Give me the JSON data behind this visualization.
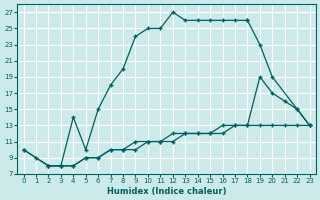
{
  "xlabel": "Humidex (Indice chaleur)",
  "bg_color": "#cdeaea",
  "grid_color": "#ffffff",
  "line_color": "#005f5f",
  "xlim": [
    -0.5,
    23.5
  ],
  "ylim": [
    7,
    28
  ],
  "xticks": [
    0,
    1,
    2,
    3,
    4,
    5,
    6,
    7,
    8,
    9,
    10,
    11,
    12,
    13,
    14,
    15,
    16,
    17,
    18,
    19,
    20,
    21,
    22,
    23
  ],
  "yticks": [
    7,
    9,
    11,
    13,
    15,
    17,
    19,
    21,
    23,
    25,
    27
  ],
  "line_top_x": [
    0,
    1,
    2,
    3,
    4,
    5,
    6,
    7,
    8,
    9,
    10,
    11,
    12,
    13,
    14,
    15,
    16,
    17,
    18
  ],
  "line_top_y": [
    10,
    9,
    8,
    8,
    14,
    10,
    15,
    18,
    20,
    24,
    25,
    25,
    27,
    26,
    26,
    26,
    26,
    26,
    26
  ],
  "line_mid_x": [
    2,
    3,
    4,
    5,
    6,
    7,
    8,
    9,
    10,
    11,
    12,
    13,
    14,
    15,
    16,
    17,
    18,
    19,
    20,
    21,
    22,
    23
  ],
  "line_mid_y": [
    8,
    8,
    8,
    9,
    9,
    10,
    10,
    11,
    11,
    11,
    12,
    12,
    12,
    12,
    13,
    13,
    13,
    19,
    17,
    16,
    15,
    13
  ],
  "line_bot_x": [
    0,
    2,
    3,
    4,
    5,
    6,
    7,
    8,
    9,
    10,
    11,
    12,
    13,
    14,
    15,
    16,
    17,
    18,
    19,
    20,
    21,
    22,
    23
  ],
  "line_bot_y": [
    10,
    8,
    8,
    8,
    9,
    9,
    10,
    10,
    10,
    11,
    11,
    11,
    12,
    12,
    12,
    12,
    13,
    13,
    13,
    13,
    13,
    13,
    13
  ],
  "line_close_x": [
    18,
    19,
    20,
    22,
    23
  ],
  "line_close_y": [
    26,
    23,
    19,
    15,
    13
  ]
}
